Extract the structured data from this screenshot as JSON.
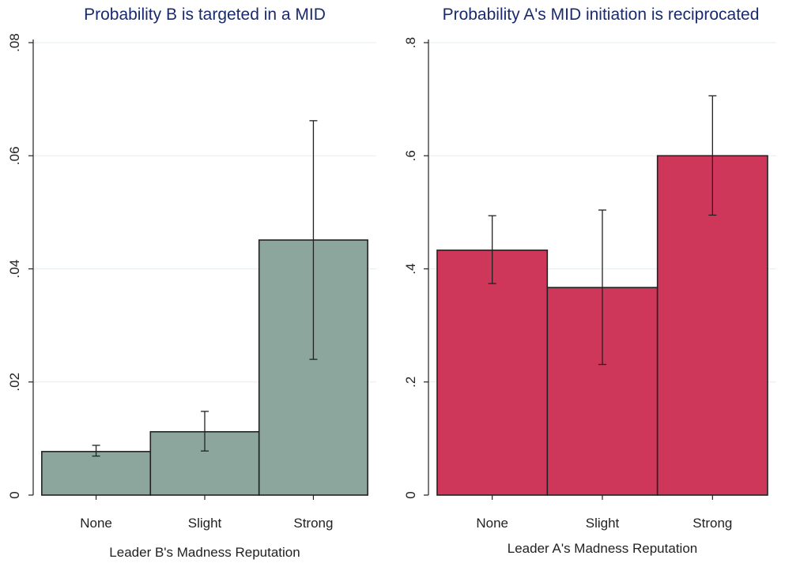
{
  "chart_data": [
    {
      "type": "bar",
      "title": "Probability B is targeted in a MID",
      "xlabel": "Leader B's Madness Reputation",
      "ylabel": "",
      "categories": [
        "None",
        "Slight",
        "Strong"
      ],
      "values": [
        0.0077,
        0.0112,
        0.0451
      ],
      "error_low": [
        0.0069,
        0.0078,
        0.024
      ],
      "error_high": [
        0.0088,
        0.0148,
        0.0662
      ],
      "ylim": [
        0,
        0.08
      ],
      "yticks": [
        0,
        0.02,
        0.04,
        0.06,
        0.08
      ],
      "ytick_labels": [
        "0",
        ".02",
        ".04",
        ".06",
        ".08"
      ],
      "bar_color": "#8ca69d",
      "grid": true
    },
    {
      "type": "bar",
      "title": "Probability A's MID initiation is reciprocated",
      "xlabel": "Leader A's Madness Reputation",
      "ylabel": "",
      "categories": [
        "None",
        "Slight",
        "Strong"
      ],
      "values": [
        0.433,
        0.367,
        0.6
      ],
      "error_low": [
        0.374,
        0.231,
        0.495
      ],
      "error_high": [
        0.494,
        0.504,
        0.706
      ],
      "ylim": [
        0,
        0.8
      ],
      "yticks": [
        0,
        0.2,
        0.4,
        0.6,
        0.8
      ],
      "ytick_labels": [
        "0",
        ".2",
        ".4",
        ".6",
        ".8"
      ],
      "bar_color": "#cf375a",
      "grid": true
    }
  ]
}
